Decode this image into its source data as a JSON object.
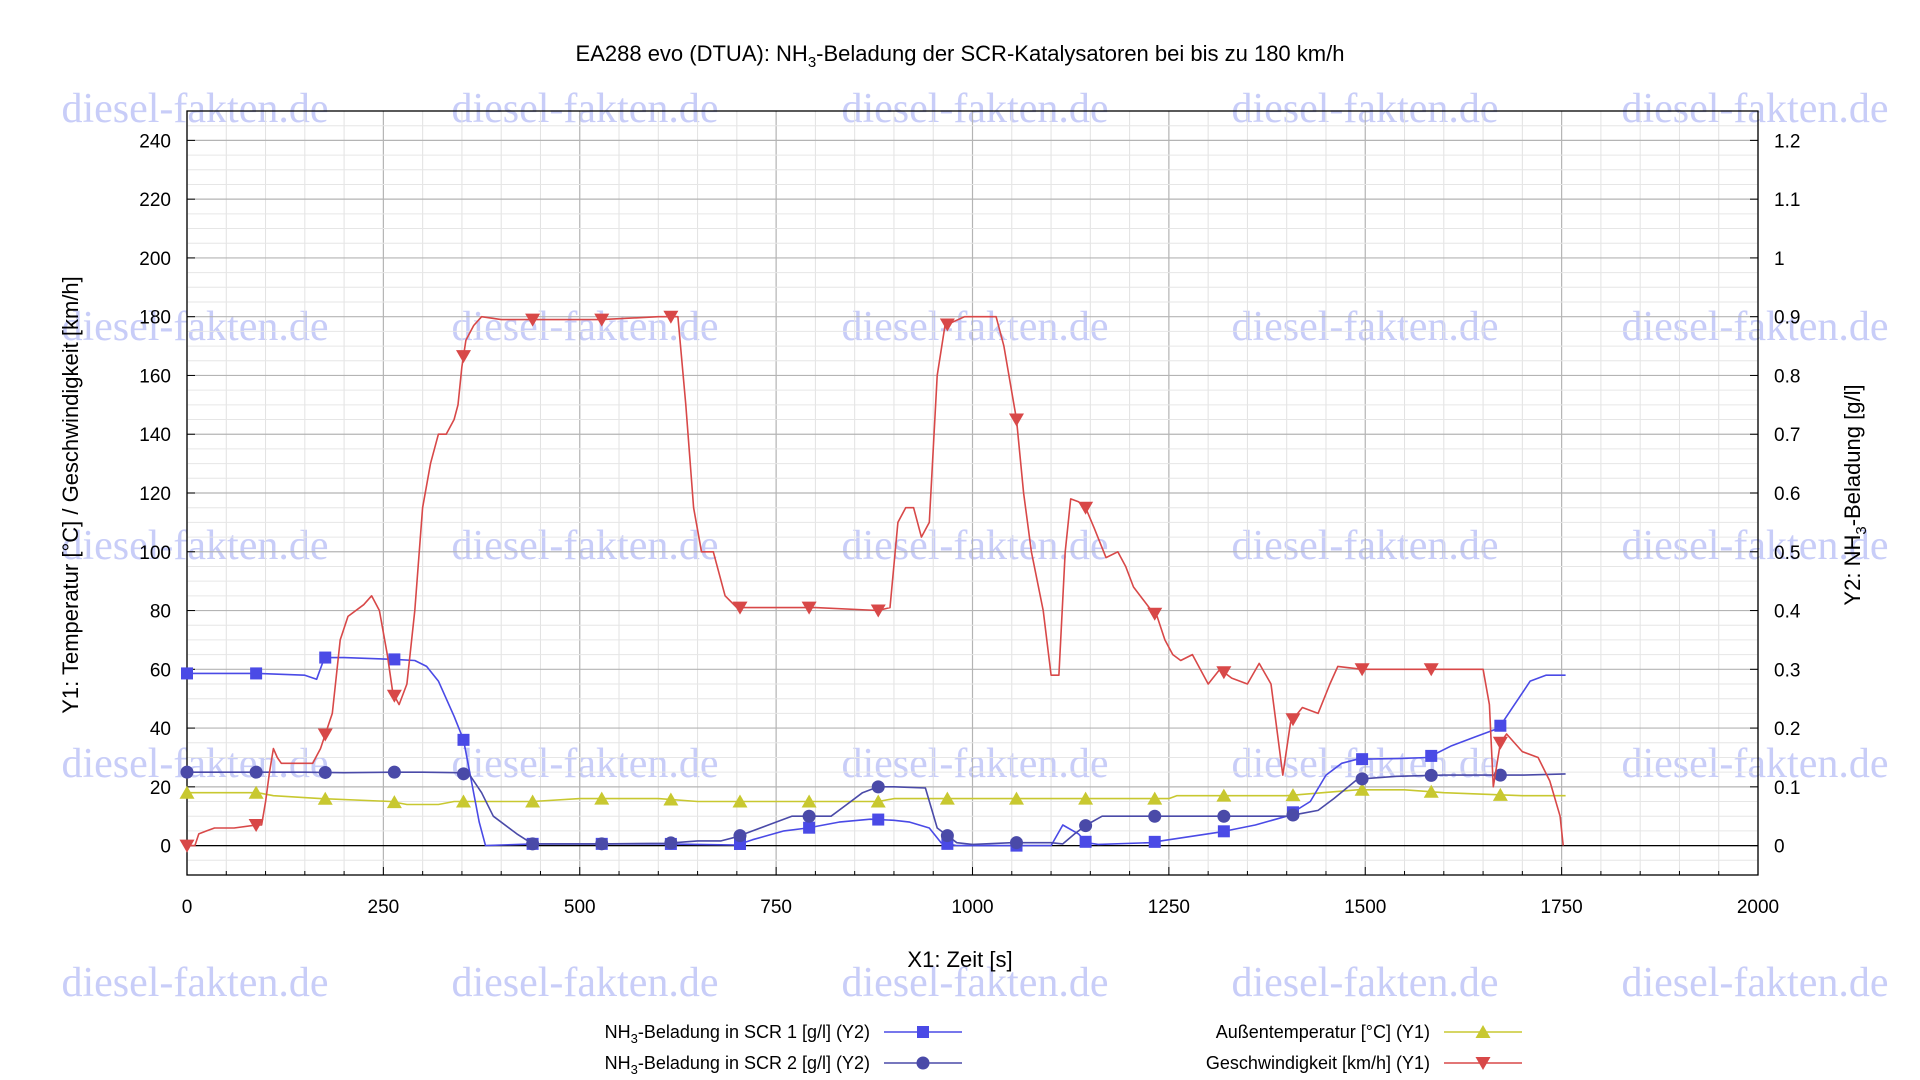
{
  "chart_data": {
    "type": "line",
    "title": "EA288 evo (DTUA): NH3-Beladung der SCR-Katalysatoren bei bis zu 180 km/h",
    "title_parts": {
      "pre": "EA288 evo (DTUA): NH",
      "sub": "3",
      "post": "-Beladung der SCR-Katalysatoren bei bis zu 180 km/h"
    },
    "xlabel": "X1: Zeit [s]",
    "ylabel_left": "Y1: Temperatur [°C] / Geschwindigkeit [km/h]",
    "ylabel_right_parts": {
      "pre": "Y2: NH",
      "sub": "3",
      "post": "-Beladung [g/l]"
    },
    "xlim": [
      0,
      2000
    ],
    "ylim_left": [
      -10,
      250
    ],
    "ylim_right": [
      -0.05,
      1.25
    ],
    "x_ticks": [
      0,
      250,
      500,
      750,
      1000,
      1250,
      1500,
      1750,
      2000
    ],
    "y_left_ticks": [
      0,
      20,
      40,
      60,
      80,
      100,
      120,
      140,
      160,
      180,
      200,
      220,
      240
    ],
    "y_right_ticks": [
      "0",
      "0.1",
      "0.2",
      "0.3",
      "0.4",
      "0.5",
      "0.6",
      "0.7",
      "0.8",
      "0.9",
      "1",
      "1.1",
      "1.2"
    ],
    "grid": true,
    "legend_position": "bottom",
    "watermark": "diesel-fakten.de",
    "series": [
      {
        "name": "NH3-Beladung in SCR 1 [g/l] (Y2)",
        "name_parts": {
          "pre": "NH",
          "sub": "3",
          "post": "-Beladung in SCR 1 [g/l] (Y2)"
        },
        "axis": "right",
        "color": "#4a4ae6",
        "marker": "square",
        "points": [
          [
            0,
            0.293
          ],
          [
            90,
            0.293
          ],
          [
            150,
            0.29
          ],
          [
            165,
            0.283
          ],
          [
            175,
            0.32
          ],
          [
            200,
            0.32
          ],
          [
            262,
            0.317
          ],
          [
            290,
            0.315
          ],
          [
            305,
            0.305
          ],
          [
            320,
            0.28
          ],
          [
            340,
            0.22
          ],
          [
            352,
            0.18
          ],
          [
            362,
            0.11
          ],
          [
            372,
            0.04
          ],
          [
            380,
            0.0
          ],
          [
            440,
            0.003
          ],
          [
            525,
            0.003
          ],
          [
            610,
            0.003
          ],
          [
            700,
            0.001
          ],
          [
            720,
            0.01
          ],
          [
            760,
            0.025
          ],
          [
            790,
            0.03
          ],
          [
            830,
            0.04
          ],
          [
            870,
            0.045
          ],
          [
            900,
            0.043
          ],
          [
            920,
            0.04
          ],
          [
            945,
            0.03
          ],
          [
            960,
            0.005
          ],
          [
            980,
            0.0
          ],
          [
            1050,
            0.0
          ],
          [
            1100,
            0.0
          ],
          [
            1115,
            0.035
          ],
          [
            1135,
            0.02
          ],
          [
            1145,
            0.005
          ],
          [
            1160,
            0.002
          ],
          [
            1225,
            0.005
          ],
          [
            1260,
            0.012
          ],
          [
            1315,
            0.023
          ],
          [
            1360,
            0.035
          ],
          [
            1400,
            0.05
          ],
          [
            1430,
            0.075
          ],
          [
            1450,
            0.12
          ],
          [
            1470,
            0.14
          ],
          [
            1490,
            0.147
          ],
          [
            1540,
            0.148
          ],
          [
            1580,
            0.15
          ],
          [
            1610,
            0.17
          ],
          [
            1640,
            0.185
          ],
          [
            1670,
            0.2
          ],
          [
            1690,
            0.24
          ],
          [
            1710,
            0.28
          ],
          [
            1730,
            0.29
          ],
          [
            1755,
            0.29
          ]
        ],
        "marker_x": [
          0,
          88,
          176,
          264,
          352,
          440,
          528,
          616,
          704,
          792,
          880,
          968,
          1056,
          1144,
          1232,
          1320,
          1408,
          1496,
          1584,
          1672
        ]
      },
      {
        "name": "NH3-Beladung in SCR 2 [g/l] (Y2)",
        "name_parts": {
          "pre": "NH",
          "sub": "3",
          "post": "-Beladung in SCR 2 [g/l] (Y2)"
        },
        "axis": "right",
        "color": "#4a4aa8",
        "marker": "circle",
        "points": [
          [
            0,
            0.125
          ],
          [
            150,
            0.125
          ],
          [
            200,
            0.124
          ],
          [
            262,
            0.125
          ],
          [
            300,
            0.125
          ],
          [
            345,
            0.124
          ],
          [
            360,
            0.12
          ],
          [
            375,
            0.09
          ],
          [
            390,
            0.05
          ],
          [
            420,
            0.02
          ],
          [
            440,
            0.003
          ],
          [
            525,
            0.003
          ],
          [
            610,
            0.004
          ],
          [
            650,
            0.008
          ],
          [
            680,
            0.008
          ],
          [
            700,
            0.015
          ],
          [
            740,
            0.035
          ],
          [
            770,
            0.05
          ],
          [
            790,
            0.05
          ],
          [
            820,
            0.05
          ],
          [
            840,
            0.07
          ],
          [
            860,
            0.09
          ],
          [
            880,
            0.1
          ],
          [
            900,
            0.1
          ],
          [
            940,
            0.098
          ],
          [
            955,
            0.03
          ],
          [
            965,
            0.02
          ],
          [
            980,
            0.005
          ],
          [
            1000,
            0.002
          ],
          [
            1050,
            0.005
          ],
          [
            1100,
            0.005
          ],
          [
            1115,
            0.003
          ],
          [
            1130,
            0.02
          ],
          [
            1145,
            0.035
          ],
          [
            1165,
            0.05
          ],
          [
            1225,
            0.05
          ],
          [
            1320,
            0.05
          ],
          [
            1400,
            0.05
          ],
          [
            1420,
            0.055
          ],
          [
            1440,
            0.06
          ],
          [
            1460,
            0.08
          ],
          [
            1490,
            0.113
          ],
          [
            1540,
            0.118
          ],
          [
            1600,
            0.12
          ],
          [
            1660,
            0.12
          ],
          [
            1700,
            0.12
          ],
          [
            1755,
            0.122
          ]
        ],
        "marker_x": [
          0,
          88,
          176,
          264,
          352,
          440,
          528,
          616,
          704,
          792,
          880,
          968,
          1056,
          1144,
          1232,
          1320,
          1408,
          1496,
          1584,
          1672
        ]
      },
      {
        "name": "Außentemperatur [°C] (Y1)",
        "axis": "left",
        "color": "#c8c830",
        "marker": "triangle-up",
        "points": [
          [
            0,
            18
          ],
          [
            90,
            18
          ],
          [
            110,
            17
          ],
          [
            170,
            16
          ],
          [
            260,
            15
          ],
          [
            280,
            14
          ],
          [
            320,
            14
          ],
          [
            340,
            15
          ],
          [
            360,
            15
          ],
          [
            400,
            15
          ],
          [
            440,
            15
          ],
          [
            500,
            16
          ],
          [
            600,
            16
          ],
          [
            650,
            15
          ],
          [
            700,
            15
          ],
          [
            800,
            15
          ],
          [
            880,
            15
          ],
          [
            900,
            16
          ],
          [
            960,
            16
          ],
          [
            1100,
            16
          ],
          [
            1250,
            16
          ],
          [
            1260,
            17
          ],
          [
            1400,
            17
          ],
          [
            1490,
            19
          ],
          [
            1550,
            19
          ],
          [
            1600,
            18
          ],
          [
            1700,
            17
          ],
          [
            1755,
            17
          ]
        ],
        "marker_x": [
          0,
          88,
          176,
          264,
          352,
          440,
          528,
          616,
          704,
          792,
          880,
          968,
          1056,
          1144,
          1232,
          1320,
          1408,
          1496,
          1584,
          1672
        ]
      },
      {
        "name": "Geschwindigkeit [km/h] (Y1)",
        "axis": "left",
        "color": "#d84848",
        "marker": "triangle-down",
        "points": [
          [
            0,
            0
          ],
          [
            10,
            0
          ],
          [
            15,
            4
          ],
          [
            25,
            5
          ],
          [
            35,
            6
          ],
          [
            60,
            6
          ],
          [
            88,
            7
          ],
          [
            95,
            7
          ],
          [
            100,
            15
          ],
          [
            105,
            25
          ],
          [
            110,
            33
          ],
          [
            115,
            30
          ],
          [
            120,
            28
          ],
          [
            160,
            28
          ],
          [
            170,
            33
          ],
          [
            185,
            45
          ],
          [
            195,
            70
          ],
          [
            205,
            78
          ],
          [
            225,
            82
          ],
          [
            235,
            85
          ],
          [
            245,
            80
          ],
          [
            255,
            65
          ],
          [
            262,
            52
          ],
          [
            270,
            48
          ],
          [
            280,
            55
          ],
          [
            290,
            80
          ],
          [
            300,
            115
          ],
          [
            310,
            130
          ],
          [
            320,
            140
          ],
          [
            330,
            140
          ],
          [
            340,
            145
          ],
          [
            345,
            150
          ],
          [
            350,
            163
          ],
          [
            355,
            172
          ],
          [
            365,
            177
          ],
          [
            375,
            180
          ],
          [
            400,
            179
          ],
          [
            440,
            179
          ],
          [
            528,
            179
          ],
          [
            600,
            180
          ],
          [
            625,
            180
          ],
          [
            635,
            150
          ],
          [
            645,
            115
          ],
          [
            655,
            100
          ],
          [
            670,
            100
          ],
          [
            685,
            85
          ],
          [
            700,
            81
          ],
          [
            800,
            81
          ],
          [
            880,
            80
          ],
          [
            895,
            81
          ],
          [
            905,
            110
          ],
          [
            915,
            115
          ],
          [
            925,
            115
          ],
          [
            935,
            105
          ],
          [
            945,
            110
          ],
          [
            955,
            160
          ],
          [
            965,
            177
          ],
          [
            990,
            180
          ],
          [
            1030,
            180
          ],
          [
            1040,
            170
          ],
          [
            1056,
            145
          ],
          [
            1065,
            120
          ],
          [
            1075,
            100
          ],
          [
            1090,
            80
          ],
          [
            1100,
            58
          ],
          [
            1110,
            58
          ],
          [
            1118,
            100
          ],
          [
            1125,
            118
          ],
          [
            1135,
            117
          ],
          [
            1144,
            115
          ],
          [
            1155,
            108
          ],
          [
            1170,
            98
          ],
          [
            1185,
            100
          ],
          [
            1195,
            95
          ],
          [
            1205,
            88
          ],
          [
            1225,
            81
          ],
          [
            1235,
            78
          ],
          [
            1245,
            70
          ],
          [
            1255,
            65
          ],
          [
            1265,
            63
          ],
          [
            1280,
            65
          ],
          [
            1300,
            55
          ],
          [
            1315,
            60
          ],
          [
            1330,
            57
          ],
          [
            1350,
            55
          ],
          [
            1365,
            62
          ],
          [
            1380,
            55
          ],
          [
            1395,
            24
          ],
          [
            1405,
            42
          ],
          [
            1420,
            47
          ],
          [
            1440,
            45
          ],
          [
            1455,
            55
          ],
          [
            1465,
            61
          ],
          [
            1496,
            60
          ],
          [
            1540,
            60
          ],
          [
            1584,
            60
          ],
          [
            1650,
            60
          ],
          [
            1658,
            48
          ],
          [
            1663,
            20
          ],
          [
            1672,
            35
          ],
          [
            1680,
            38
          ],
          [
            1700,
            32
          ],
          [
            1720,
            30
          ],
          [
            1735,
            22
          ],
          [
            1748,
            10
          ],
          [
            1752,
            0
          ]
        ],
        "marker_x": [
          0,
          88,
          176,
          264,
          352,
          440,
          528,
          616,
          704,
          792,
          880,
          968,
          1056,
          1144,
          1232,
          1320,
          1408,
          1496,
          1584,
          1672
        ]
      }
    ]
  }
}
